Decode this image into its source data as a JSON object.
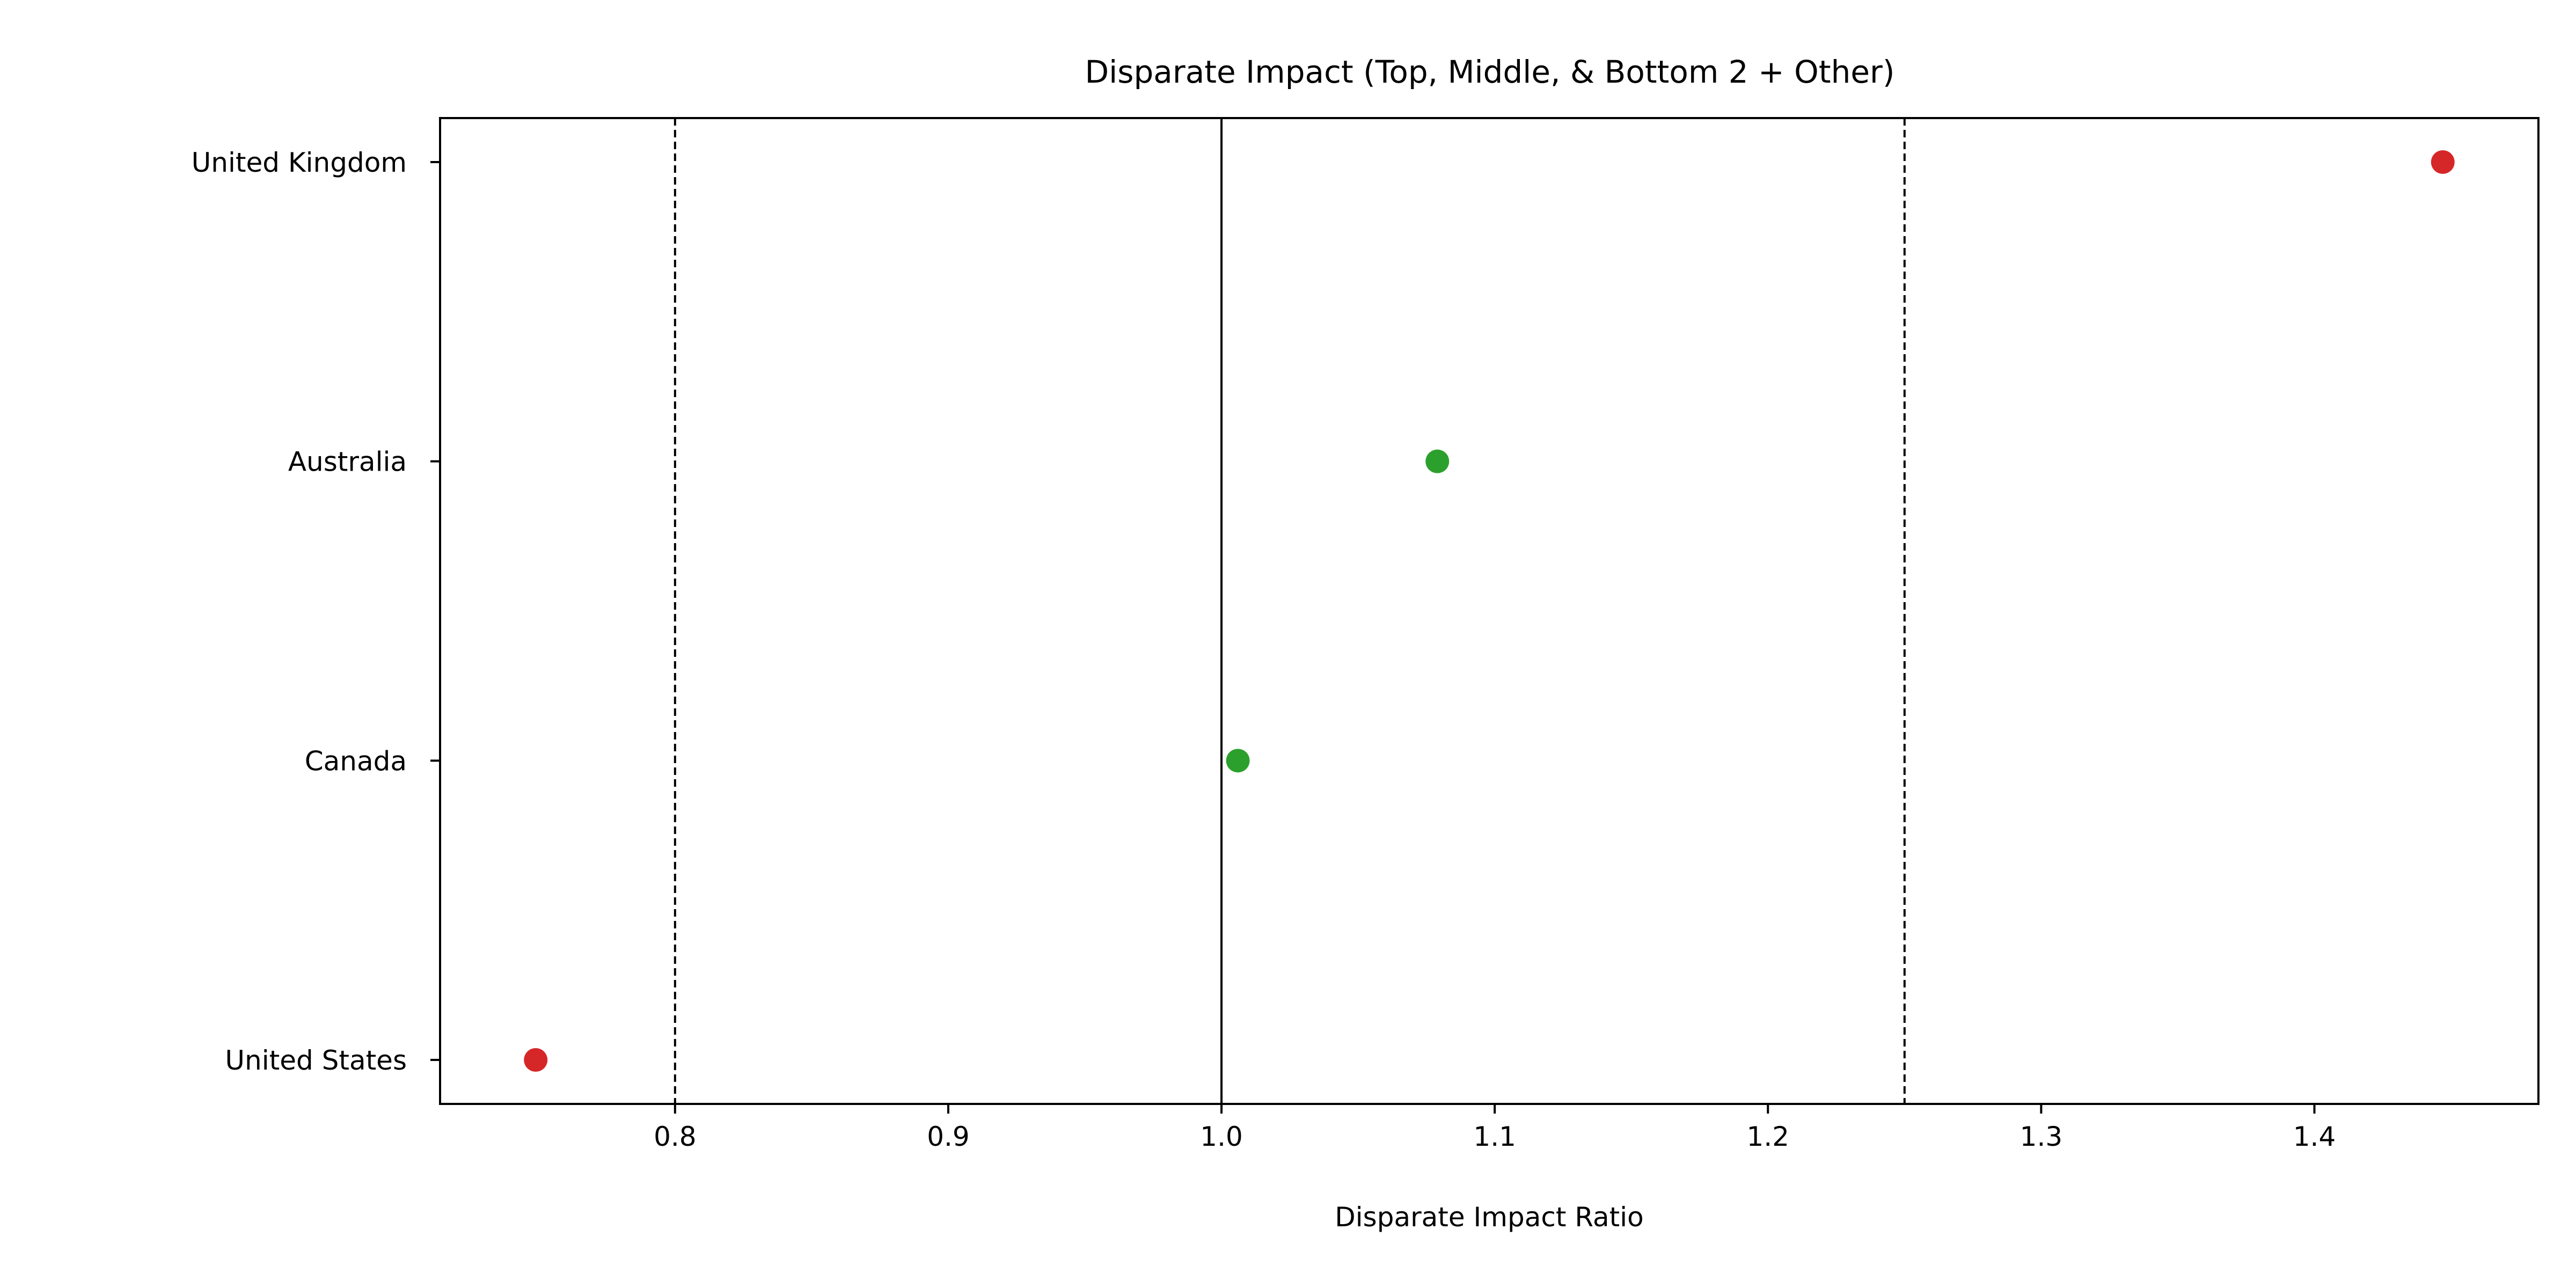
{
  "chart_data": {
    "type": "scatter",
    "title": "Disparate Impact (Top, Middle, & Bottom 2 + Other)",
    "xlabel": "Disparate Impact Ratio",
    "ylabel": "",
    "xlim": [
      0.714,
      1.482
    ],
    "xticks": [
      0.8,
      0.9,
      1.0,
      1.1,
      1.2,
      1.3,
      1.4
    ],
    "xtick_labels": [
      "0.8",
      "0.9",
      "1.0",
      "1.1",
      "1.2",
      "1.3",
      "1.4"
    ],
    "categories": [
      "United Kingdom",
      "Australia",
      "Canada",
      "United States"
    ],
    "values": [
      1.447,
      1.079,
      1.006,
      0.749
    ],
    "point_colors": [
      "#d62728",
      "#2ca02c",
      "#2ca02c",
      "#d62728"
    ],
    "reference_lines": [
      {
        "x": 0.8,
        "style": "dashed"
      },
      {
        "x": 1.0,
        "style": "solid"
      },
      {
        "x": 1.25,
        "style": "dashed"
      }
    ],
    "grid": false,
    "legend": "none"
  }
}
